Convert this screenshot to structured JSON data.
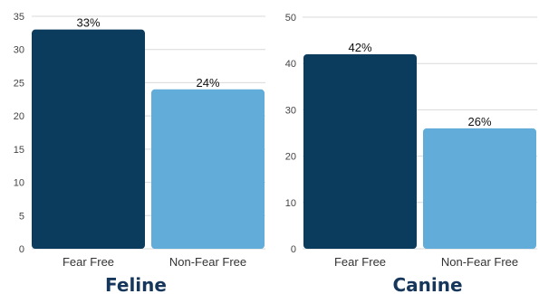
{
  "chart_data": [
    {
      "type": "bar",
      "title": "Feline",
      "categories": [
        "Fear Free",
        "Non-Fear Free"
      ],
      "values": [
        33,
        24
      ],
      "data_labels": [
        "33%",
        "24%"
      ],
      "ylim": [
        0,
        35
      ],
      "yticks": [
        0,
        5,
        10,
        15,
        20,
        25,
        30,
        35
      ],
      "grid": true,
      "legend": "none",
      "bar_colors": [
        "#0b3c5d",
        "#62acd9"
      ]
    },
    {
      "type": "bar",
      "title": "Canine",
      "categories": [
        "Fear Free",
        "Non-Fear Free"
      ],
      "values": [
        42,
        26
      ],
      "data_labels": [
        "42%",
        "26%"
      ],
      "ylim": [
        0,
        50
      ],
      "yticks": [
        0,
        10,
        20,
        30,
        40,
        50
      ],
      "grid": true,
      "legend": "none",
      "bar_colors": [
        "#0b3c5d",
        "#62acd9"
      ]
    }
  ],
  "colors": {
    "title": "#16365c",
    "grid": "#d9d9d9"
  }
}
